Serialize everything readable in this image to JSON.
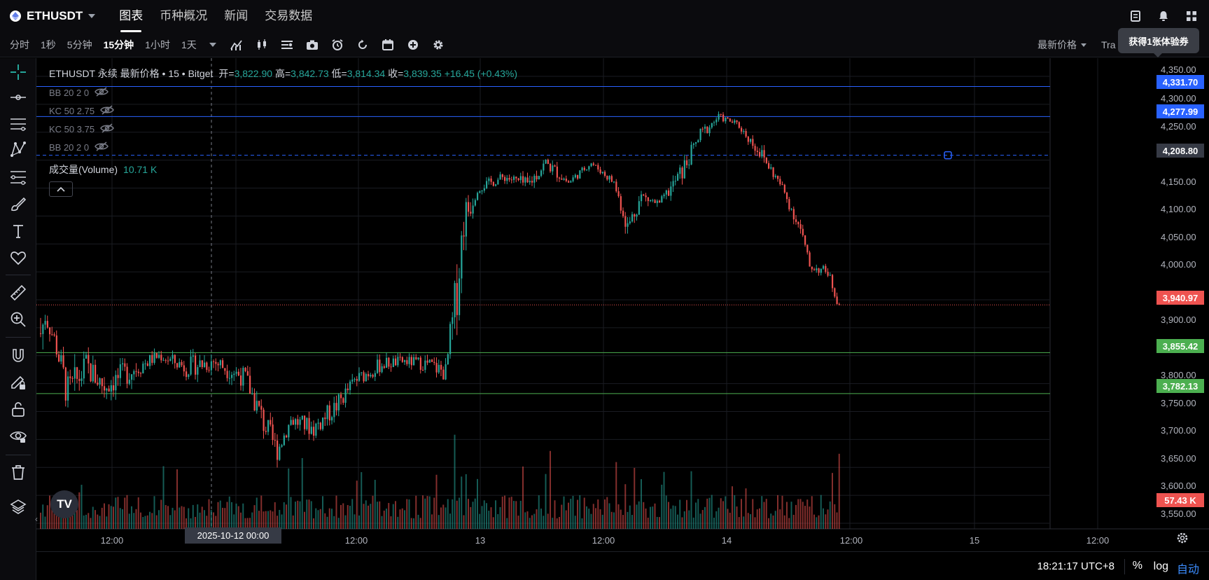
{
  "header": {
    "symbol": "ETHUSDT",
    "tabs": [
      {
        "label": "图表",
        "active": true
      },
      {
        "label": "币种概况",
        "active": false
      },
      {
        "label": "新闻",
        "active": false
      },
      {
        "label": "交易数据",
        "active": false
      }
    ]
  },
  "toolbar": {
    "intervals": [
      {
        "label": "分时",
        "active": false
      },
      {
        "label": "1秒",
        "active": false
      },
      {
        "label": "5分钟",
        "active": false
      },
      {
        "label": "15分钟",
        "active": true
      },
      {
        "label": "1小时",
        "active": false
      },
      {
        "label": "1天",
        "active": false
      }
    ],
    "price_type": "最新价格",
    "trade_label": "Tra",
    "tooltip": "获得1张体验券"
  },
  "legend": {
    "title": "ETHUSDT 永续 最新价格 • 15 • Bitget",
    "open_label": "开=",
    "open": "3,822.90",
    "high_label": "高=",
    "high": "3,842.73",
    "low_label": "低=",
    "low": "3,814.34",
    "close_label": "收=",
    "close": "3,839.35",
    "change": "+16.45 (+0.43%)"
  },
  "indicators": [
    {
      "label": "BB 20 2 0"
    },
    {
      "label": "KC 50 2.75"
    },
    {
      "label": "KC 50 3.75"
    },
    {
      "label": "BB 20 2 0"
    }
  ],
  "volume": {
    "label": "成交量(Volume)",
    "value": "10.71 K"
  },
  "price_axis": {
    "labels": [
      "4,350.00",
      "4,300.00",
      "4,250.00",
      "4,150.00",
      "4,100.00",
      "4,050.00",
      "4,000.00",
      "3,900.00",
      "3,800.00",
      "3,750.00",
      "3,700.00",
      "3,650.00",
      "3,600.00",
      "3,550.00"
    ],
    "tags": [
      {
        "text": "4,331.70",
        "color": "#2962ff"
      },
      {
        "text": "4,277.99",
        "color": "#2962ff"
      },
      {
        "text": "4,208.80",
        "color": "#363a45"
      },
      {
        "text": "3,940.97",
        "color": "#ef5350"
      },
      {
        "text": "3,855.42",
        "color": "#4caf50"
      },
      {
        "text": "3,782.13",
        "color": "#4caf50"
      },
      {
        "text": "57.43 K",
        "color": "#ef5350"
      }
    ]
  },
  "time_axis": {
    "labels": [
      "12:00",
      "12:00",
      "13",
      "12:00",
      "14",
      "12:00",
      "15",
      "12:00"
    ],
    "cursor": "2025-10-12   00:00"
  },
  "bottom": {
    "clock": "18:21:17 UTC+8",
    "percent": "%",
    "log": "log",
    "auto": "自动"
  },
  "chart_data": {
    "type": "candlestick",
    "symbol": "ETHUSDT",
    "interval": "15",
    "ylim": [
      3540,
      4365
    ],
    "x_start": "2025-10-11 08:00",
    "x_end": "2025-10-14 16:30",
    "last_price": 3940.97,
    "horizontal_lines": [
      4331.7,
      4277.99,
      4208.8,
      3940.97,
      3855.42,
      3782.13
    ],
    "path": [
      [
        0,
        3820,
        3960
      ],
      [
        2,
        3900,
        3940
      ],
      [
        6,
        3860,
        3900
      ],
      [
        12,
        3740,
        3820
      ],
      [
        20,
        3800,
        3860
      ],
      [
        28,
        3770,
        3820
      ],
      [
        40,
        3800,
        3850
      ],
      [
        52,
        3840,
        3860
      ],
      [
        64,
        3810,
        3850
      ],
      [
        76,
        3820,
        3860
      ],
      [
        90,
        3790,
        3830
      ],
      [
        98,
        3700,
        3760
      ],
      [
        104,
        3660,
        3700
      ],
      [
        110,
        3720,
        3750
      ],
      [
        120,
        3700,
        3740
      ],
      [
        130,
        3740,
        3780
      ],
      [
        138,
        3790,
        3820
      ],
      [
        150,
        3820,
        3850
      ],
      [
        160,
        3830,
        3850
      ],
      [
        170,
        3820,
        3850
      ],
      [
        178,
        3800,
        3840
      ],
      [
        182,
        3870,
        3990
      ],
      [
        186,
        4050,
        4140
      ],
      [
        192,
        4140,
        4160
      ],
      [
        204,
        4160,
        4180
      ],
      [
        214,
        4140,
        4170
      ],
      [
        222,
        4180,
        4210
      ],
      [
        232,
        4150,
        4170
      ],
      [
        242,
        4190,
        4200
      ],
      [
        252,
        4150,
        4170
      ],
      [
        258,
        4060,
        4100
      ],
      [
        264,
        4120,
        4150
      ],
      [
        272,
        4110,
        4130
      ],
      [
        282,
        4160,
        4200
      ],
      [
        290,
        4230,
        4260
      ],
      [
        298,
        4270,
        4285
      ],
      [
        306,
        4260,
        4270
      ],
      [
        316,
        4200,
        4230
      ],
      [
        326,
        4140,
        4160
      ],
      [
        334,
        4060,
        4090
      ],
      [
        338,
        4000,
        4020
      ],
      [
        346,
        3990,
        4010
      ],
      [
        350,
        3940,
        3960
      ]
    ],
    "volume": {
      "ylim": [
        0,
        75
      ],
      "last": 57.43
    }
  }
}
